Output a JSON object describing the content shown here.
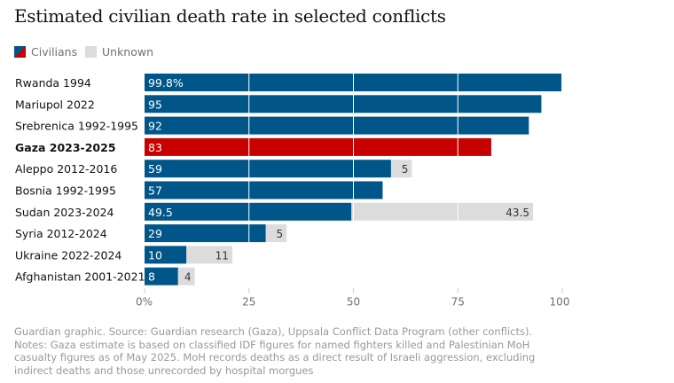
{
  "title": "Estimated civilian death rate in selected conflicts",
  "legend": [
    {
      "label": "Civilians",
      "icon": "split-blue-red-swatch"
    },
    {
      "label": "Unknown",
      "color": "#dcdcdc"
    }
  ],
  "colors": {
    "civilians": "#005689",
    "highlight": "#c70000",
    "unknown": "#dcdcdc",
    "gridline": "#ffffff"
  },
  "chart_data": {
    "type": "bar",
    "orientation": "horizontal",
    "stacked": true,
    "categories": [
      "Rwanda 1994",
      "Mariupol 2022",
      "Srebrenica 1992-1995",
      "Gaza 2023-2025",
      "Aleppo 2012-2016",
      "Bosnia 1992-1995",
      "Sudan 2023-2024",
      "Syria 2012-2024",
      "Ukraine 2022-2024",
      "Afghanistan 2001-2021"
    ],
    "highlighted_category": "Gaza 2023-2025",
    "series": [
      {
        "name": "Civilians",
        "values": [
          99.8,
          95,
          92,
          83,
          59,
          57,
          49.5,
          29,
          10,
          8
        ],
        "labels": [
          "99.8%",
          "95",
          "92",
          "83",
          "59",
          "57",
          "49.5",
          "29",
          "10",
          "8"
        ]
      },
      {
        "name": "Unknown",
        "values": [
          null,
          null,
          null,
          null,
          5,
          null,
          43.5,
          5,
          11,
          4
        ],
        "labels": [
          "",
          "",
          "",
          "",
          "5",
          "",
          "43.5",
          "5",
          "11",
          "4"
        ]
      }
    ],
    "xlim": [
      0,
      100
    ],
    "xticks": [
      0,
      25,
      50,
      75,
      100
    ],
    "xtick_labels": [
      "0%",
      "25",
      "50",
      "75",
      "100"
    ],
    "grid": true
  },
  "footer": "Guardian graphic. Source: Guardian research (Gaza), Uppsala Conflict Data Program (other conflicts). Notes: Gaza estimate is based on classified IDF figures for named fighters killed and Palestinian MoH casualty figures as of May 2025. MoH records deaths as a direct result of Israeli aggression, excluding indirect deaths and those unrecorded by hospital morgues"
}
